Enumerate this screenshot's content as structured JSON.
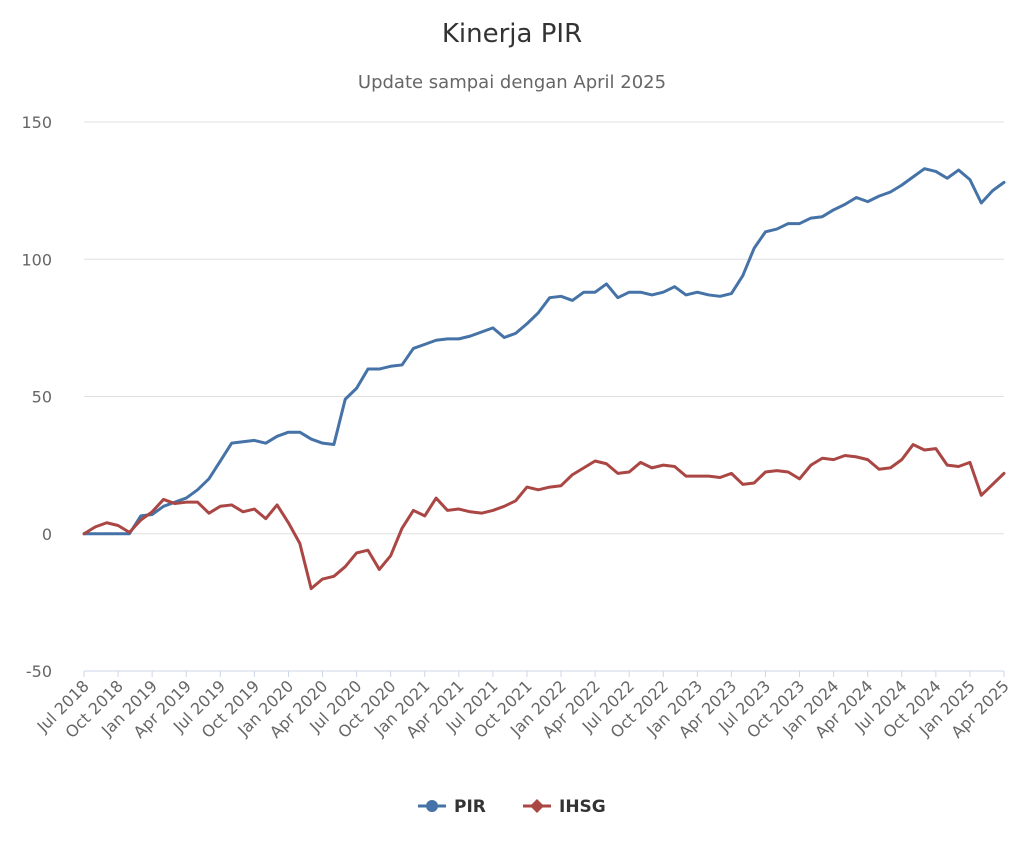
{
  "chart_data": {
    "type": "line",
    "title": "Kinerja PIR",
    "subtitle": "Update sampai dengan April 2025",
    "ylim": [
      -50,
      150
    ],
    "yticks": [
      -50,
      0,
      50,
      100,
      150
    ],
    "xtick_labels": [
      "Jul 2018",
      "Oct 2018",
      "Jan 2019",
      "Apr 2019",
      "Jul 2019",
      "Oct 2019",
      "Jan 2020",
      "Apr 2020",
      "Jul 2020",
      "Oct 2020",
      "Jan 2021",
      "Apr 2021",
      "Jul 2021",
      "Oct 2021",
      "Jan 2022",
      "Apr 2022",
      "Jul 2022",
      "Oct 2022",
      "Jan 2023",
      "Apr 2023",
      "Jul 2023",
      "Oct 2023",
      "Jan 2024",
      "Apr 2024",
      "Jul 2024",
      "Oct 2024",
      "Jan 2025",
      "Apr 2025"
    ],
    "grid": true,
    "legend_position": "bottom-center",
    "series": [
      {
        "name": "PIR",
        "color": "#4572a7",
        "marker": "circle",
        "values": [
          0,
          0,
          0,
          0,
          0,
          6.5,
          7,
          10,
          11.5,
          13,
          16,
          20,
          26.5,
          33,
          33.5,
          34,
          33,
          35.5,
          37,
          37,
          34.5,
          33,
          32.5,
          49,
          53,
          60,
          60,
          61,
          61.5,
          67.5,
          69,
          70.5,
          71,
          71,
          72,
          73.5,
          75,
          71.5,
          73,
          76.5,
          80.5,
          86,
          86.5,
          85,
          88,
          88,
          91,
          86,
          88,
          88,
          87,
          88,
          90,
          87,
          88,
          87,
          86.5,
          87.5,
          94,
          104,
          110,
          111,
          113,
          113,
          115,
          115.5,
          118,
          120,
          122.5,
          121,
          123,
          124.5,
          127,
          130,
          133,
          132,
          129.5,
          132.5,
          129,
          120.5,
          125,
          128
        ]
      },
      {
        "name": "IHSG",
        "color": "#aa4643",
        "marker": "diamond",
        "values": [
          0,
          2.5,
          4,
          3,
          0.5,
          5,
          8,
          12.5,
          11,
          11.5,
          11.5,
          7.5,
          10,
          10.5,
          8,
          9,
          5.5,
          10.5,
          4,
          -3.5,
          -20,
          -16.5,
          -15.5,
          -12,
          -7,
          -6,
          -13,
          -8,
          2,
          8.5,
          6.5,
          13,
          8.5,
          9,
          8,
          7.5,
          8.5,
          10,
          12,
          17,
          16,
          17,
          17.5,
          21.5,
          24,
          26.5,
          25.5,
          22,
          22.5,
          26,
          24,
          25,
          24.5,
          21,
          21,
          21,
          20.5,
          22,
          18,
          18.5,
          22.5,
          23,
          22.5,
          20,
          25,
          27.5,
          27,
          28.5,
          28,
          27,
          23.5,
          24,
          27,
          32.5,
          30.5,
          31,
          25,
          24.5,
          26,
          14,
          18,
          22
        ]
      }
    ]
  }
}
